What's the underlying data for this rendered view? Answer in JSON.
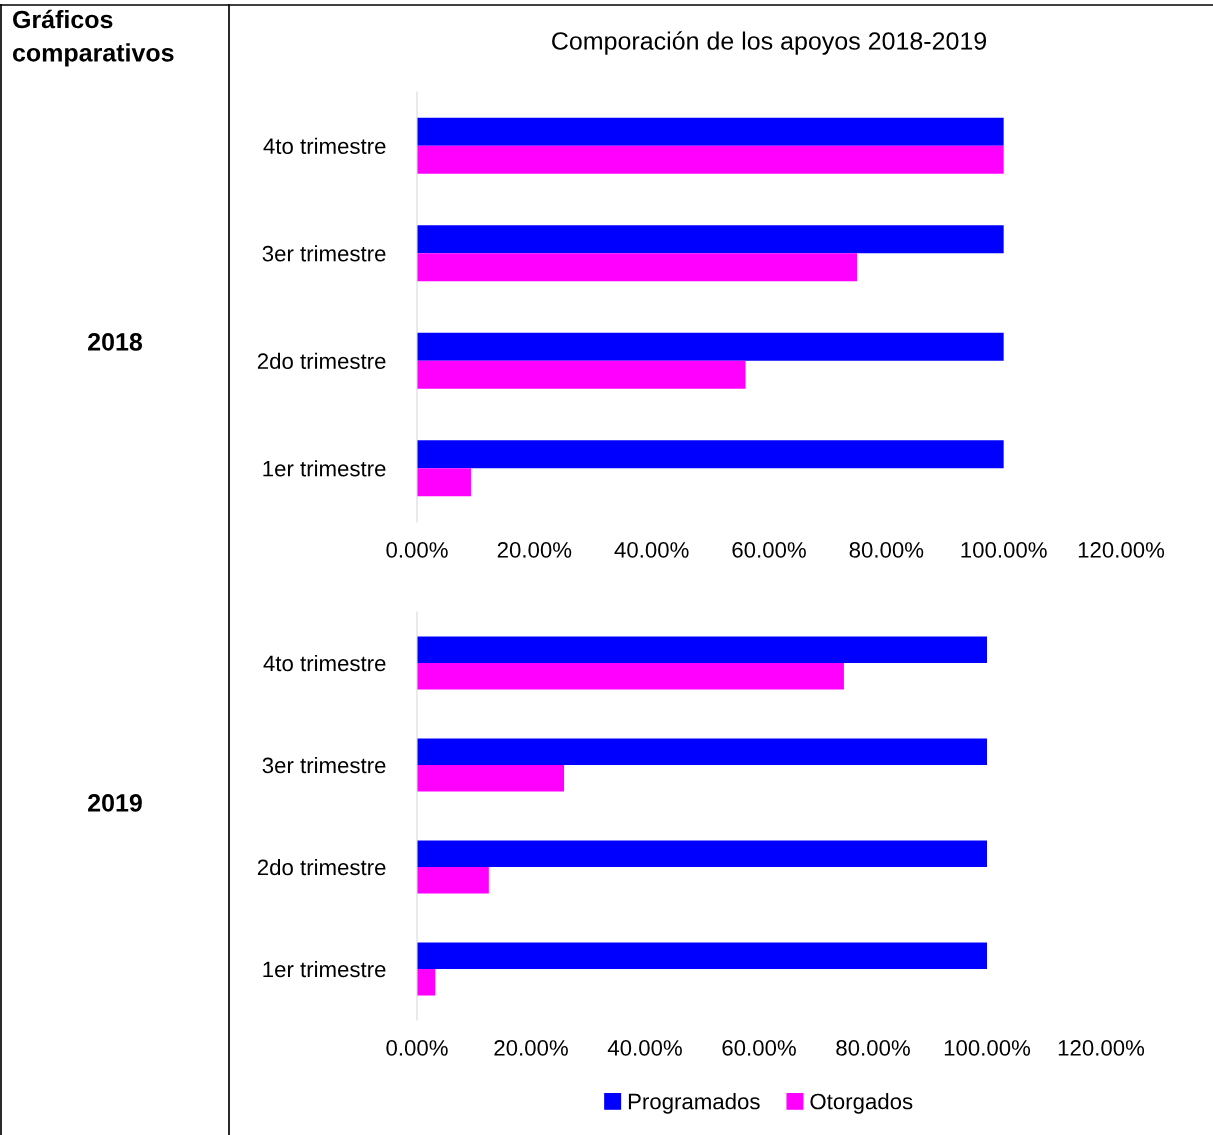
{
  "chart_data": [
    {
      "type": "bar",
      "orientation": "horizontal",
      "title": "Comporación de los apoyos 2018-2019",
      "annotations": [
        "Gráficos comparativos",
        "2018"
      ],
      "categories": [
        "4to trimestre",
        "3er trimestre",
        "2do trimestre",
        "1er trimestre"
      ],
      "series": [
        {
          "color": "#0000ff",
          "values": [
            100,
            100,
            100,
            100
          ]
        },
        {
          "color": "#ff00ff",
          "values": [
            100,
            75,
            56,
            9.2
          ]
        }
      ],
      "xlim": [
        0,
        120
      ],
      "xticks": [
        {
          "value": 0,
          "label": "0.00%"
        },
        {
          "value": 20,
          "label": "20.00%"
        },
        {
          "value": 40,
          "label": "40.00%"
        },
        {
          "value": 60,
          "label": "60.00%"
        },
        {
          "value": 80,
          "label": "80.00%"
        },
        {
          "value": 100,
          "label": "100.00%"
        },
        {
          "value": 120,
          "label": "120.00%"
        }
      ],
      "grid": false,
      "legend": false
    },
    {
      "type": "bar",
      "orientation": "horizontal",
      "annotations": [
        "2019"
      ],
      "categories": [
        "4to trimestre",
        "3er trimestre",
        "2do trimestre",
        "1er trimestre"
      ],
      "series": [
        {
          "name": "Programados",
          "color": "#0000ff",
          "values": [
            100,
            100,
            100,
            100
          ]
        },
        {
          "name": "Otorgados",
          "color": "#ff00ff",
          "values": [
            74.9,
            25.8,
            12.6,
            3.2
          ]
        }
      ],
      "xlim": [
        0,
        120
      ],
      "xticks": [
        {
          "value": 0,
          "label": "0.00%"
        },
        {
          "value": 20,
          "label": "20.00%"
        },
        {
          "value": 40,
          "label": "40.00%"
        },
        {
          "value": 60,
          "label": "60.00%"
        },
        {
          "value": 80,
          "label": "80.00%"
        },
        {
          "value": 100,
          "label": "100.00%"
        },
        {
          "value": 120,
          "label": "120.00%"
        }
      ],
      "grid": false,
      "legend": "bottom"
    }
  ]
}
